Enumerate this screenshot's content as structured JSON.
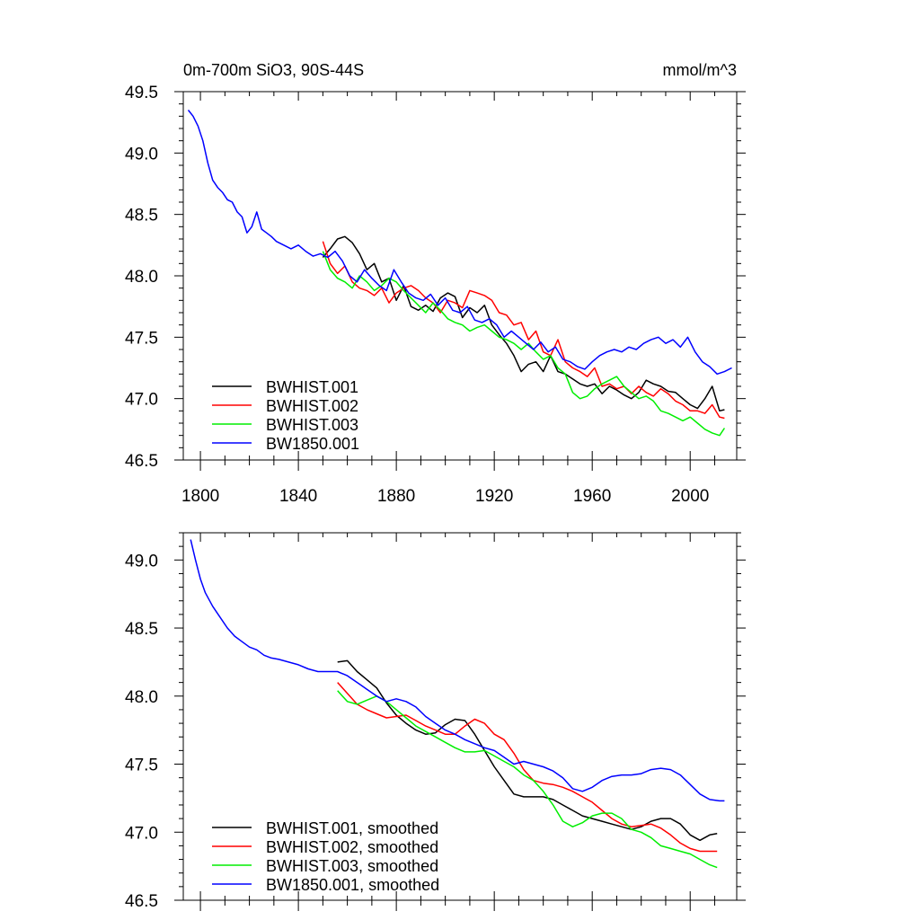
{
  "chart_data": [
    {
      "type": "line",
      "title_left": "0m-700m SiO3, 90S-44S",
      "title_right": "mmol/m^3",
      "xlabel": "",
      "ylabel": "",
      "xlim": [
        1793,
        2019
      ],
      "ylim": [
        46.5,
        49.5
      ],
      "xticks": [
        1800,
        1840,
        1880,
        1920,
        1960,
        2000
      ],
      "xtick_labels": [
        "1800",
        "1840",
        "1880",
        "1920",
        "1960",
        "2000"
      ],
      "yticks": [
        46.5,
        47.0,
        47.5,
        48.0,
        48.5,
        49.0,
        49.5
      ],
      "ytick_labels": [
        "46.5",
        "47.0",
        "47.5",
        "48.0",
        "48.5",
        "49.0",
        "49.5"
      ],
      "legend_position": "bottom-left",
      "series": [
        {
          "name": "BWHIST.001",
          "color": "#000000",
          "x": [
            1850,
            1853,
            1856,
            1859,
            1862,
            1865,
            1868,
            1871,
            1874,
            1877,
            1880,
            1883,
            1886,
            1889,
            1892,
            1895,
            1898,
            1901,
            1904,
            1907,
            1910,
            1913,
            1916,
            1919,
            1922,
            1925,
            1928,
            1931,
            1934,
            1937,
            1940,
            1943,
            1946,
            1949,
            1952,
            1955,
            1958,
            1961,
            1964,
            1967,
            1970,
            1973,
            1976,
            1979,
            1982,
            1985,
            1988,
            1991,
            1994,
            1997,
            2000,
            2003,
            2006,
            2009,
            2012,
            2014
          ],
          "y": [
            48.15,
            48.22,
            48.3,
            48.32,
            48.27,
            48.18,
            48.05,
            48.1,
            47.95,
            47.98,
            47.8,
            47.92,
            47.75,
            47.72,
            47.76,
            47.71,
            47.82,
            47.86,
            47.83,
            47.66,
            47.74,
            47.7,
            47.76,
            47.6,
            47.52,
            47.45,
            47.35,
            47.22,
            47.28,
            47.3,
            47.22,
            47.35,
            47.22,
            47.2,
            47.16,
            47.12,
            47.1,
            47.12,
            47.04,
            47.1,
            47.07,
            47.03,
            47.0,
            47.05,
            47.15,
            47.12,
            47.1,
            47.06,
            47.05,
            47.0,
            46.95,
            46.92,
            47.0,
            47.1,
            46.9,
            46.91
          ]
        },
        {
          "name": "BWHIST.002",
          "color": "#ff0000",
          "x": [
            1850,
            1853,
            1856,
            1859,
            1862,
            1865,
            1868,
            1871,
            1874,
            1877,
            1880,
            1883,
            1886,
            1889,
            1892,
            1895,
            1898,
            1901,
            1904,
            1907,
            1910,
            1913,
            1916,
            1919,
            1922,
            1925,
            1928,
            1931,
            1934,
            1937,
            1940,
            1943,
            1946,
            1949,
            1952,
            1955,
            1958,
            1961,
            1964,
            1967,
            1970,
            1973,
            1976,
            1979,
            1982,
            1985,
            1988,
            1991,
            1994,
            1997,
            2000,
            2003,
            2006,
            2009,
            2012,
            2014
          ],
          "y": [
            48.28,
            48.1,
            48.02,
            48.08,
            47.95,
            47.9,
            47.88,
            47.84,
            47.9,
            47.78,
            47.86,
            47.9,
            47.92,
            47.88,
            47.82,
            47.78,
            47.7,
            47.8,
            47.78,
            47.74,
            47.88,
            47.86,
            47.84,
            47.8,
            47.7,
            47.68,
            47.6,
            47.62,
            47.48,
            47.55,
            47.38,
            47.35,
            47.48,
            47.3,
            47.25,
            47.22,
            47.18,
            47.25,
            47.1,
            47.12,
            47.08,
            47.1,
            47.04,
            47.1,
            47.05,
            47.02,
            47.08,
            47.04,
            46.98,
            46.95,
            46.9,
            46.9,
            46.88,
            46.95,
            46.85,
            46.84
          ]
        },
        {
          "name": "BWHIST.003",
          "color": "#00ee00",
          "x": [
            1850,
            1853,
            1856,
            1859,
            1862,
            1865,
            1868,
            1871,
            1874,
            1877,
            1880,
            1883,
            1886,
            1889,
            1892,
            1895,
            1898,
            1901,
            1904,
            1907,
            1910,
            1913,
            1916,
            1919,
            1922,
            1925,
            1928,
            1931,
            1934,
            1937,
            1940,
            1943,
            1946,
            1949,
            1952,
            1955,
            1958,
            1961,
            1964,
            1967,
            1970,
            1973,
            1976,
            1979,
            1982,
            1985,
            1988,
            1991,
            1994,
            1997,
            2000,
            2003,
            2006,
            2009,
            2012,
            2014
          ],
          "y": [
            48.2,
            48.05,
            47.98,
            47.95,
            47.9,
            48.0,
            47.95,
            47.88,
            47.92,
            47.98,
            47.95,
            47.88,
            47.82,
            47.76,
            47.7,
            47.78,
            47.72,
            47.65,
            47.62,
            47.6,
            47.55,
            47.58,
            47.6,
            47.55,
            47.5,
            47.48,
            47.45,
            47.4,
            47.45,
            47.38,
            47.32,
            47.35,
            47.25,
            47.2,
            47.05,
            47.0,
            47.02,
            47.08,
            47.12,
            47.15,
            47.18,
            47.1,
            47.05,
            47.0,
            47.02,
            46.98,
            46.9,
            46.88,
            46.85,
            46.82,
            46.85,
            46.8,
            46.75,
            46.72,
            46.7,
            46.76
          ]
        },
        {
          "name": "BW1850.001",
          "color": "#0000ff",
          "x": [
            1795,
            1797,
            1799,
            1801,
            1803,
            1805,
            1807,
            1809,
            1811,
            1813,
            1815,
            1817,
            1819,
            1821,
            1823,
            1825,
            1827,
            1829,
            1831,
            1834,
            1837,
            1840,
            1843,
            1846,
            1849,
            1852,
            1855,
            1858,
            1861,
            1864,
            1867,
            1870,
            1873,
            1876,
            1879,
            1882,
            1885,
            1888,
            1891,
            1894,
            1897,
            1900,
            1903,
            1906,
            1909,
            1912,
            1915,
            1918,
            1921,
            1924,
            1927,
            1930,
            1933,
            1936,
            1939,
            1942,
            1945,
            1948,
            1951,
            1954,
            1957,
            1960,
            1963,
            1966,
            1969,
            1972,
            1975,
            1978,
            1981,
            1984,
            1987,
            1990,
            1993,
            1996,
            1999,
            2002,
            2005,
            2008,
            2011,
            2014,
            2017
          ],
          "y": [
            49.35,
            49.3,
            49.22,
            49.1,
            48.92,
            48.78,
            48.72,
            48.68,
            48.62,
            48.6,
            48.52,
            48.48,
            48.35,
            48.4,
            48.52,
            48.38,
            48.35,
            48.32,
            48.28,
            48.25,
            48.22,
            48.25,
            48.2,
            48.16,
            48.18,
            48.15,
            48.2,
            48.12,
            48.0,
            47.95,
            48.05,
            47.98,
            47.92,
            47.88,
            48.05,
            47.95,
            47.86,
            47.82,
            47.8,
            47.85,
            47.76,
            47.82,
            47.72,
            47.7,
            47.75,
            47.64,
            47.62,
            47.65,
            47.6,
            47.5,
            47.55,
            47.5,
            47.45,
            47.4,
            47.46,
            47.38,
            47.42,
            47.32,
            47.3,
            47.26,
            47.24,
            47.3,
            47.35,
            47.38,
            47.4,
            47.38,
            47.42,
            47.4,
            47.45,
            47.48,
            47.5,
            47.45,
            47.48,
            47.42,
            47.5,
            47.38,
            47.3,
            47.26,
            47.2,
            47.22,
            47.25
          ]
        }
      ]
    },
    {
      "type": "line",
      "title_left": "",
      "title_right": "",
      "xlabel": "",
      "ylabel": "",
      "xlim": [
        1793,
        2019
      ],
      "ylim": [
        46.5,
        49.2
      ],
      "xticks": [
        1800,
        1840,
        1880,
        1920,
        1960,
        2000
      ],
      "yticks": [
        46.5,
        47.0,
        47.5,
        48.0,
        48.5,
        49.0
      ],
      "ytick_labels": [
        "46.5",
        "47.0",
        "47.5",
        "48.0",
        "48.5",
        "49.0"
      ],
      "legend_position": "bottom-left",
      "series": [
        {
          "name": "BWHIST.001, smoothed",
          "color": "#000000",
          "x": [
            1856,
            1860,
            1864,
            1868,
            1872,
            1876,
            1880,
            1884,
            1888,
            1892,
            1896,
            1900,
            1904,
            1908,
            1912,
            1916,
            1920,
            1924,
            1928,
            1932,
            1936,
            1940,
            1944,
            1948,
            1952,
            1956,
            1960,
            1964,
            1968,
            1972,
            1976,
            1980,
            1984,
            1988,
            1992,
            1996,
            2000,
            2004,
            2008,
            2011
          ],
          "y": [
            48.25,
            48.26,
            48.18,
            48.12,
            48.06,
            47.95,
            47.86,
            47.8,
            47.75,
            47.72,
            47.73,
            47.79,
            47.83,
            47.82,
            47.72,
            47.6,
            47.48,
            47.38,
            47.28,
            47.26,
            47.26,
            47.26,
            47.24,
            47.2,
            47.16,
            47.12,
            47.1,
            47.08,
            47.06,
            47.04,
            47.02,
            47.04,
            47.08,
            47.1,
            47.1,
            47.06,
            46.98,
            46.94,
            46.98,
            46.99
          ]
        },
        {
          "name": "BWHIST.002, smoothed",
          "color": "#ff0000",
          "x": [
            1856,
            1860,
            1864,
            1868,
            1872,
            1876,
            1880,
            1884,
            1888,
            1892,
            1896,
            1900,
            1904,
            1908,
            1912,
            1916,
            1920,
            1924,
            1928,
            1932,
            1936,
            1940,
            1944,
            1948,
            1952,
            1956,
            1960,
            1964,
            1968,
            1972,
            1976,
            1980,
            1984,
            1988,
            1992,
            1996,
            2000,
            2004,
            2008,
            2011
          ],
          "y": [
            48.1,
            48.02,
            47.94,
            47.9,
            47.87,
            47.84,
            47.85,
            47.86,
            47.82,
            47.78,
            47.75,
            47.72,
            47.72,
            47.78,
            47.83,
            47.8,
            47.72,
            47.68,
            47.58,
            47.46,
            47.38,
            47.36,
            47.35,
            47.33,
            47.3,
            47.26,
            47.22,
            47.16,
            47.1,
            47.06,
            47.04,
            47.05,
            47.06,
            47.03,
            46.98,
            46.92,
            46.88,
            46.86,
            46.86,
            46.86
          ]
        },
        {
          "name": "BWHIST.003, smoothed",
          "color": "#00ee00",
          "x": [
            1856,
            1860,
            1864,
            1868,
            1872,
            1876,
            1880,
            1884,
            1888,
            1892,
            1896,
            1900,
            1904,
            1908,
            1912,
            1916,
            1920,
            1924,
            1928,
            1932,
            1936,
            1940,
            1944,
            1948,
            1952,
            1956,
            1960,
            1964,
            1968,
            1972,
            1976,
            1980,
            1984,
            1988,
            1992,
            1996,
            2000,
            2004,
            2008,
            2011
          ],
          "y": [
            48.04,
            47.96,
            47.94,
            47.97,
            48.0,
            47.96,
            47.9,
            47.84,
            47.78,
            47.74,
            47.7,
            47.66,
            47.62,
            47.59,
            47.59,
            47.6,
            47.56,
            47.52,
            47.48,
            47.42,
            47.38,
            47.3,
            47.2,
            47.08,
            47.04,
            47.07,
            47.12,
            47.14,
            47.14,
            47.1,
            47.02,
            47.0,
            46.96,
            46.9,
            46.88,
            46.86,
            46.84,
            46.8,
            46.76,
            46.74
          ]
        },
        {
          "name": "BW1850.001, smoothed",
          "color": "#0000ff",
          "x": [
            1796,
            1798,
            1800,
            1802,
            1805,
            1808,
            1811,
            1814,
            1817,
            1820,
            1823,
            1826,
            1829,
            1832,
            1836,
            1840,
            1844,
            1848,
            1852,
            1856,
            1860,
            1864,
            1868,
            1872,
            1876,
            1880,
            1884,
            1888,
            1892,
            1896,
            1900,
            1904,
            1908,
            1912,
            1916,
            1920,
            1924,
            1928,
            1932,
            1936,
            1940,
            1944,
            1948,
            1952,
            1956,
            1960,
            1964,
            1968,
            1972,
            1976,
            1980,
            1984,
            1988,
            1992,
            1996,
            2000,
            2004,
            2008,
            2012,
            2014
          ],
          "y": [
            49.15,
            49.0,
            48.86,
            48.76,
            48.66,
            48.58,
            48.5,
            48.44,
            48.4,
            48.36,
            48.34,
            48.3,
            48.28,
            48.27,
            48.25,
            48.23,
            48.2,
            48.18,
            48.18,
            48.18,
            48.15,
            48.1,
            48.05,
            48.0,
            47.96,
            47.98,
            47.96,
            47.92,
            47.85,
            47.8,
            47.75,
            47.72,
            47.68,
            47.65,
            47.62,
            47.6,
            47.55,
            47.5,
            47.52,
            47.5,
            47.48,
            47.45,
            47.4,
            47.32,
            47.3,
            47.33,
            47.38,
            47.41,
            47.42,
            47.42,
            47.43,
            47.46,
            47.47,
            47.46,
            47.42,
            47.35,
            47.28,
            47.24,
            47.23,
            47.23
          ]
        }
      ]
    }
  ]
}
